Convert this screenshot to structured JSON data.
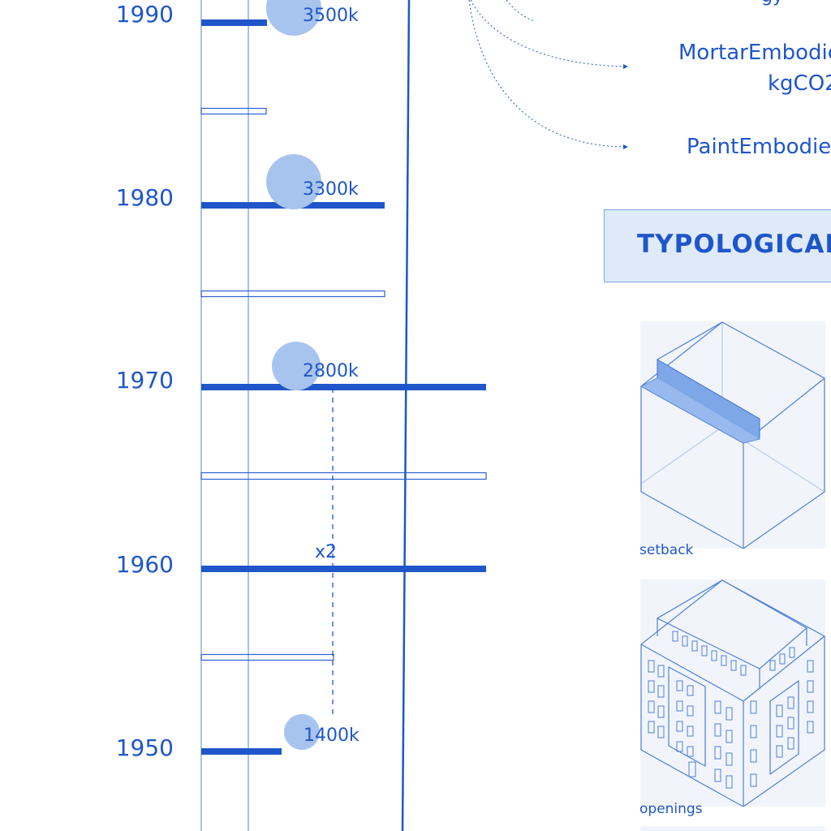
{
  "timeline": {
    "years": [
      "1990",
      "1980",
      "1970",
      "1960",
      "1950"
    ],
    "bubbles": [
      {
        "year": 1990,
        "label": "3500k",
        "population_k": 3500
      },
      {
        "year": 1980,
        "label": "3300k",
        "population_k": 3300
      },
      {
        "year": 1970,
        "label": "2800k",
        "population_k": 2800
      },
      {
        "year": 1950,
        "label": "1400k",
        "population_k": 1400
      }
    ],
    "multiplier_label": "x2"
  },
  "annotations": {
    "mortar_line1": "MortarEmbodie",
    "mortar_line2": "kgCO2",
    "paint": "PaintEmbodie"
  },
  "section": {
    "title": "TYPOLOGICAL"
  },
  "typologies": [
    {
      "label": "setback",
      "icon": "setback-axonometric-icon"
    },
    {
      "label": "openings",
      "icon": "openings-axonometric-icon"
    }
  ],
  "colors": {
    "primary": "#1f56c9",
    "bubble": "#a7c4ef",
    "banner_bg": "#dfeaf8",
    "thumb_bg": "#f1f5fb"
  }
}
